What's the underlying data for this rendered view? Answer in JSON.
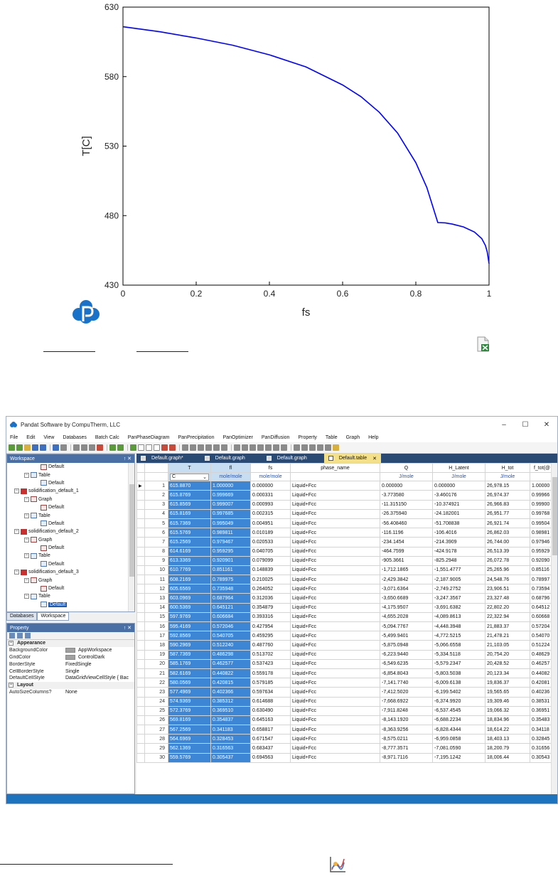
{
  "chart_data": {
    "type": "line",
    "xlabel": "fs",
    "ylabel": "T[C]",
    "xlim": [
      0,
      1
    ],
    "ylim": [
      430,
      630
    ],
    "x_ticks": [
      0,
      0.2,
      0.4,
      0.6,
      0.8,
      1
    ],
    "x_tick_labels": [
      "0",
      "0.2",
      "0.4",
      "0.6",
      "0.8",
      "1"
    ],
    "y_ticks": [
      430,
      480,
      530,
      580,
      630
    ],
    "y_tick_labels": [
      "430",
      "480",
      "530",
      "580",
      "630"
    ],
    "grid": false,
    "legend": "none",
    "series": [
      {
        "color": "#0000ff",
        "x": [
          0,
          0.1,
          0.2,
          0.3,
          0.4,
          0.5,
          0.6,
          0.65,
          0.7,
          0.75,
          0.8,
          0.83,
          0.86,
          0.88,
          0.9,
          0.93,
          0.96,
          0.98,
          0.99,
          0.995,
          1.0
        ],
        "y": [
          615.9,
          612.3,
          607.8,
          602.6,
          595.7,
          587.0,
          574.0,
          565.6,
          554.4,
          539.4,
          518.1,
          500.2,
          475.0,
          474.8,
          473.9,
          471.9,
          468.2,
          463.5,
          458.5,
          454.0,
          445.5
        ]
      }
    ]
  },
  "colors": {
    "line": "#0000ff",
    "selection": "#3d86d6",
    "accent": "#1e73be",
    "tab_active": "#f5e08a"
  },
  "icons": {
    "logo": "pandat-logo-icon",
    "excel": "excel-export-icon",
    "graph": "graph-icon"
  },
  "app": {
    "title": "Pandat Software by CompuTherm, LLC",
    "window_controls": [
      "–",
      "☐",
      "✕"
    ],
    "menu": [
      "File",
      "Edit",
      "View",
      "Databases",
      "Batch Calc",
      "PanPhaseDiagram",
      "PanPrecipitation",
      "PanOptimizer",
      "PanDiffusion",
      "Property",
      "Table",
      "Graph",
      "Help"
    ]
  },
  "workspace": {
    "title": "Workspace",
    "controls": "↑ ✕",
    "tree": [
      {
        "indent": 3,
        "icon": "graph",
        "label": "Default"
      },
      {
        "indent": 2,
        "icon": "table",
        "toggle": "−",
        "label": "Table"
      },
      {
        "indent": 3,
        "icon": "table",
        "label": "Default"
      },
      {
        "indent": 1,
        "icon": "sol",
        "toggle": "−",
        "label": "solidification_default_1"
      },
      {
        "indent": 2,
        "icon": "graph",
        "toggle": "−",
        "label": "Graph"
      },
      {
        "indent": 3,
        "icon": "graph",
        "label": "Default"
      },
      {
        "indent": 2,
        "icon": "table",
        "toggle": "−",
        "label": "Table"
      },
      {
        "indent": 3,
        "icon": "table",
        "label": "Default"
      },
      {
        "indent": 1,
        "icon": "sol",
        "toggle": "−",
        "label": "solidification_default_2"
      },
      {
        "indent": 2,
        "icon": "graph",
        "toggle": "−",
        "label": "Graph"
      },
      {
        "indent": 3,
        "icon": "graph",
        "label": "Default"
      },
      {
        "indent": 2,
        "icon": "table",
        "toggle": "−",
        "label": "Table"
      },
      {
        "indent": 3,
        "icon": "table",
        "label": "Default"
      },
      {
        "indent": 1,
        "icon": "sol",
        "toggle": "−",
        "label": "solidification_default_3"
      },
      {
        "indent": 2,
        "icon": "graph",
        "toggle": "−",
        "label": "Graph"
      },
      {
        "indent": 3,
        "icon": "graph",
        "label": "Default"
      },
      {
        "indent": 2,
        "icon": "table",
        "toggle": "−",
        "label": "Table"
      },
      {
        "indent": 3,
        "icon": "table",
        "label": "Default",
        "selected": true
      }
    ],
    "tabs": [
      "Databases",
      "Workspace"
    ]
  },
  "property": {
    "title": "Property",
    "controls": "↑ ✕",
    "rows": [
      {
        "category": true,
        "toggle": "−",
        "key": "Appearance",
        "value": ""
      },
      {
        "key": "BackgroundColor",
        "value": "AppWorkspace",
        "swatch": "#a0a0a0"
      },
      {
        "key": "GridColor",
        "value": "ControlDark",
        "swatch": "#a0a0a0"
      },
      {
        "key": "BorderStyle",
        "value": "FixedSingle"
      },
      {
        "key": "CellBorderStyle",
        "value": "Single"
      },
      {
        "key": "DefaultCellStyle",
        "value": "DataGridViewCellStyle { Bac"
      },
      {
        "category": true,
        "toggle": "−",
        "key": "Layout",
        "value": ""
      },
      {
        "key": "AutoSizeColumns?",
        "value": "None"
      }
    ]
  },
  "doc_tabs": [
    {
      "label": "Default.graph*",
      "active": false
    },
    {
      "label": "Default.graph",
      "active": false
    },
    {
      "label": "Default.graph",
      "active": false
    },
    {
      "label": "Default.table",
      "active": true,
      "close": "✕"
    }
  ],
  "table": {
    "columns": [
      "T",
      "fl",
      "fs",
      "phase_name",
      "Q",
      "H_Latent",
      "H_tot",
      "f_tot(@"
    ],
    "units": [
      "C",
      "mole/mole",
      "mole/mole",
      "",
      "J/mole",
      "J/mole",
      "J/mole",
      ""
    ],
    "dropdown_arrow": "⌄",
    "row_marker": "▶",
    "rows": [
      [
        "1",
        "615.8870",
        "1.000000",
        "0.000000",
        "Liquid+Fcc",
        "0.000000",
        "0.000000",
        "26,978.15",
        "1.00000"
      ],
      [
        "2",
        "615.8769",
        "0.999669",
        "0.000331",
        "Liquid+Fcc",
        "-3.773580",
        "-3.460176",
        "26,974.37",
        "0.99966"
      ],
      [
        "3",
        "615.8569",
        "0.999007",
        "0.000993",
        "Liquid+Fcc",
        "-11.315150",
        "-10.374921",
        "26,966.83",
        "0.99900"
      ],
      [
        "4",
        "615.8169",
        "0.997685",
        "0.002315",
        "Liquid+Fcc",
        "-26.375940",
        "-24.182001",
        "26,951.77",
        "0.99768"
      ],
      [
        "5",
        "615.7369",
        "0.995049",
        "0.004951",
        "Liquid+Fcc",
        "-56.408460",
        "-51.708838",
        "26,921.74",
        "0.99504"
      ],
      [
        "6",
        "615.5769",
        "0.989811",
        "0.010189",
        "Liquid+Fcc",
        "-116.1196",
        "-106.4016",
        "26,862.03",
        "0.98981"
      ],
      [
        "7",
        "615.2569",
        "0.979467",
        "0.020533",
        "Liquid+Fcc",
        "-234.1454",
        "-214.3909",
        "26,744.00",
        "0.97946"
      ],
      [
        "8",
        "614.6169",
        "0.959295",
        "0.040705",
        "Liquid+Fcc",
        "-464.7599",
        "-424.9178",
        "26,513.39",
        "0.95929"
      ],
      [
        "9",
        "613.3369",
        "0.920901",
        "0.079099",
        "Liquid+Fcc",
        "-905.3661",
        "-825.2948",
        "26,072.78",
        "0.92090"
      ],
      [
        "10",
        "610.7769",
        "0.851161",
        "0.148839",
        "Liquid+Fcc",
        "-1,712.1865",
        "-1,551.4777",
        "25,265.96",
        "0.85116"
      ],
      [
        "11",
        "608.2169",
        "0.789975",
        "0.210025",
        "Liquid+Fcc",
        "-2,429.3842",
        "-2,187.9005",
        "24,548.76",
        "0.78997"
      ],
      [
        "12",
        "605.6569",
        "0.735948",
        "0.264052",
        "Liquid+Fcc",
        "-3,071.6364",
        "-2,749.2752",
        "23,906.51",
        "0.73594"
      ],
      [
        "13",
        "603.0969",
        "0.687964",
        "0.312036",
        "Liquid+Fcc",
        "-3,650.6689",
        "-3,247.3567",
        "23,327.48",
        "0.68796"
      ],
      [
        "14",
        "600.5369",
        "0.645121",
        "0.354879",
        "Liquid+Fcc",
        "-4,175.9507",
        "-3,691.6382",
        "22,802.20",
        "0.64512"
      ],
      [
        "15",
        "597.9769",
        "0.606684",
        "0.393316",
        "Liquid+Fcc",
        "-4,655.2028",
        "-4,089.8613",
        "22,322.94",
        "0.60668"
      ],
      [
        "16",
        "595.4169",
        "0.572046",
        "0.427954",
        "Liquid+Fcc",
        "-5,094.7767",
        "-4,448.3948",
        "21,883.37",
        "0.57204"
      ],
      [
        "17",
        "592.8569",
        "0.540705",
        "0.459295",
        "Liquid+Fcc",
        "-5,499.9401",
        "-4,772.5215",
        "21,478.21",
        "0.54070"
      ],
      [
        "18",
        "590.2969",
        "0.512240",
        "0.487760",
        "Liquid+Fcc",
        "-5,875.0948",
        "-5,066.6558",
        "21,103.05",
        "0.51224"
      ],
      [
        "19",
        "587.7369",
        "0.486298",
        "0.513702",
        "Liquid+Fcc",
        "-6,223.9440",
        "-5,334.5118",
        "20,754.20",
        "0.48629"
      ],
      [
        "20",
        "585.1769",
        "0.462577",
        "0.537423",
        "Liquid+Fcc",
        "-6,549.6235",
        "-5,579.2347",
        "20,428.52",
        "0.46257"
      ],
      [
        "21",
        "582.6169",
        "0.440822",
        "0.559178",
        "Liquid+Fcc",
        "-6,854.8043",
        "-5,803.5038",
        "20,123.34",
        "0.44082"
      ],
      [
        "22",
        "580.0569",
        "0.420815",
        "0.579185",
        "Liquid+Fcc",
        "-7,141.7740",
        "-6,009.6138",
        "19,836.37",
        "0.42081"
      ],
      [
        "23",
        "577.4969",
        "0.402366",
        "0.597634",
        "Liquid+Fcc",
        "-7,412.5020",
        "-6,199.5402",
        "19,565.65",
        "0.40236"
      ],
      [
        "24",
        "574.9369",
        "0.385312",
        "0.614688",
        "Liquid+Fcc",
        "-7,668.6922",
        "-6,374.9920",
        "19,309.46",
        "0.38531"
      ],
      [
        "25",
        "572.3769",
        "0.369510",
        "0.630490",
        "Liquid+Fcc",
        "-7,911.8248",
        "-6,537.4545",
        "19,066.32",
        "0.36951"
      ],
      [
        "26",
        "569.8169",
        "0.354837",
        "0.645163",
        "Liquid+Fcc",
        "-8,143.1920",
        "-6,688.2234",
        "18,834.96",
        "0.35483"
      ],
      [
        "27",
        "567.2569",
        "0.341183",
        "0.658817",
        "Liquid+Fcc",
        "-8,363.9256",
        "-6,828.4344",
        "18,614.22",
        "0.34118"
      ],
      [
        "28",
        "564.6969",
        "0.328453",
        "0.671547",
        "Liquid+Fcc",
        "-8,575.0211",
        "-6,959.0858",
        "18,403.13",
        "0.32845"
      ],
      [
        "29",
        "562.1369",
        "0.316563",
        "0.683437",
        "Liquid+Fcc",
        "-8,777.3571",
        "-7,081.0590",
        "18,200.79",
        "0.31656"
      ],
      [
        "30",
        "559.5769",
        "0.305437",
        "0.694563",
        "Liquid+Fcc",
        "-8,971.7116",
        "-7,195.1242",
        "18,006.44",
        "0.30543"
      ]
    ]
  }
}
